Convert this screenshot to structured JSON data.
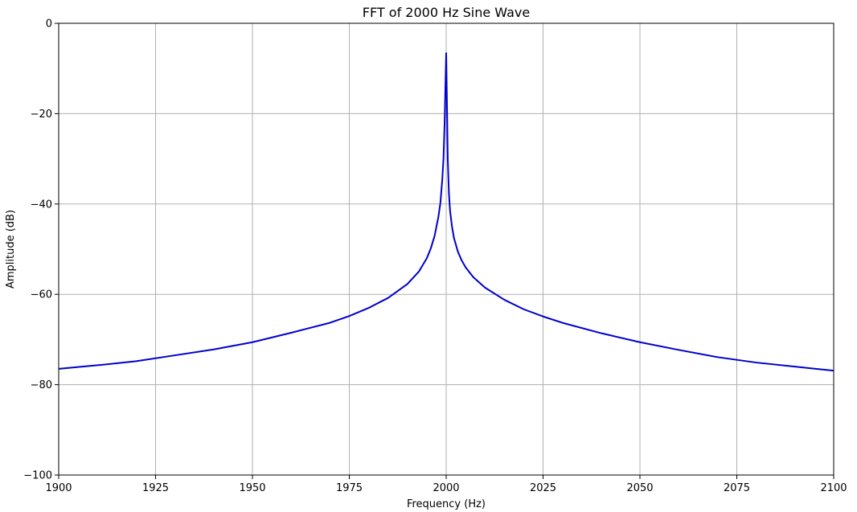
{
  "chart_data": {
    "type": "line",
    "title": "FFT of 2000 Hz Sine Wave",
    "xlabel": "Frequency (Hz)",
    "ylabel": "Amplitude (dB)",
    "xlim": [
      1900,
      2100
    ],
    "ylim": [
      -100,
      0
    ],
    "xticks": [
      1900,
      1925,
      1950,
      1975,
      2000,
      2025,
      2050,
      2075,
      2100
    ],
    "yticks": [
      0,
      -20,
      -40,
      -60,
      -80,
      -100
    ],
    "grid": true,
    "series": [
      {
        "color": "#0000cc",
        "x": [
          1900,
          1910,
          1920,
          1930,
          1940,
          1950,
          1960,
          1970,
          1975,
          1980,
          1985,
          1990,
          1993,
          1995,
          1996,
          1997,
          1998,
          1998.5,
          1999,
          1999.3,
          1999.6,
          1999.8,
          2000,
          2000.2,
          2000.4,
          2000.7,
          2001,
          2001.5,
          2002,
          2003,
          2004,
          2005,
          2007,
          2010,
          2015,
          2020,
          2025,
          2030,
          2040,
          2050,
          2060,
          2070,
          2080,
          2090,
          2100
        ],
        "y": [
          -76.5,
          -75.7,
          -74.8,
          -73.5,
          -72.2,
          -70.6,
          -68.5,
          -66.3,
          -64.8,
          -63.0,
          -60.8,
          -57.7,
          -54.9,
          -52.0,
          -49.9,
          -47.1,
          -42.8,
          -39.8,
          -34.5,
          -30.0,
          -22.0,
          -14.0,
          -6.6,
          -18.0,
          -30.0,
          -37.5,
          -41.5,
          -45.0,
          -47.5,
          -50.5,
          -52.5,
          -54.0,
          -56.2,
          -58.5,
          -61.2,
          -63.3,
          -64.9,
          -66.3,
          -68.6,
          -70.6,
          -72.3,
          -73.9,
          -75.1,
          -76.0,
          -76.9
        ]
      }
    ]
  }
}
